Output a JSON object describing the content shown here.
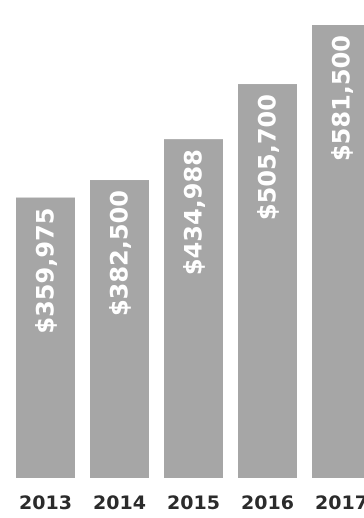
{
  "chart_data": {
    "type": "bar",
    "title": "",
    "xlabel": "",
    "ylabel": "",
    "categories": [
      "2013",
      "2014",
      "2015",
      "2016",
      "2017"
    ],
    "values": [
      359975,
      382500,
      434988,
      505700,
      581500
    ],
    "data_labels": [
      "$359,975",
      "$382,500",
      "$434,988",
      "$505,700",
      "$581,500"
    ],
    "ylim": [
      0,
      581500
    ],
    "grid": false,
    "bar_color": "#a6a6a6",
    "label_color": "#ffffff",
    "tick_color": "#2b2b2b"
  }
}
